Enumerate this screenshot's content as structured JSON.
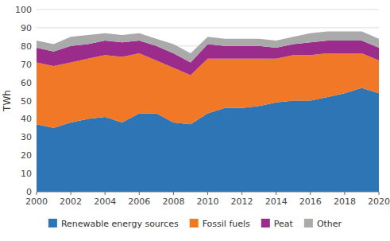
{
  "chart_data": {
    "type": "area",
    "stacked": true,
    "ylabel": "TWh",
    "x": [
      2000,
      2001,
      2002,
      2003,
      2004,
      2005,
      2006,
      2007,
      2008,
      2009,
      2010,
      2011,
      2012,
      2013,
      2014,
      2015,
      2016,
      2017,
      2018,
      2019,
      2020
    ],
    "series": [
      {
        "name": "Renewable energy sources",
        "color": "#2E75B6",
        "values": [
          37,
          35,
          38,
          40,
          41,
          38,
          43,
          43,
          38,
          37,
          43,
          46,
          46,
          47,
          49,
          50,
          50,
          52,
          54,
          57,
          54
        ]
      },
      {
        "name": "Fossil fuels",
        "color": "#F07826",
        "values": [
          34,
          34,
          33,
          33,
          34,
          36,
          33,
          29,
          30,
          27,
          30,
          27,
          27,
          26,
          24,
          25,
          25,
          24,
          22,
          19,
          18
        ]
      },
      {
        "name": "Peat",
        "color": "#9B2C8C",
        "values": [
          8,
          8,
          9,
          8,
          8,
          8,
          7,
          8,
          8,
          7,
          8,
          7,
          7,
          7,
          6,
          6,
          7,
          7,
          7,
          7,
          7
        ]
      },
      {
        "name": "Other",
        "color": "#AAAAAA",
        "values": [
          4,
          4,
          5,
          5,
          4,
          4,
          4,
          4,
          5,
          5,
          4,
          4,
          4,
          4,
          4,
          4,
          5,
          5,
          5,
          5,
          5
        ]
      }
    ],
    "xlim": [
      2000,
      2020
    ],
    "xticks": [
      2000,
      2002,
      2004,
      2006,
      2008,
      2010,
      2012,
      2014,
      2016,
      2018,
      2020
    ],
    "ylim": [
      0,
      100
    ],
    "yticks": [
      0,
      10,
      20,
      30,
      40,
      50,
      60,
      70,
      80,
      90,
      100
    ],
    "grid": true,
    "legend": "bottom"
  }
}
